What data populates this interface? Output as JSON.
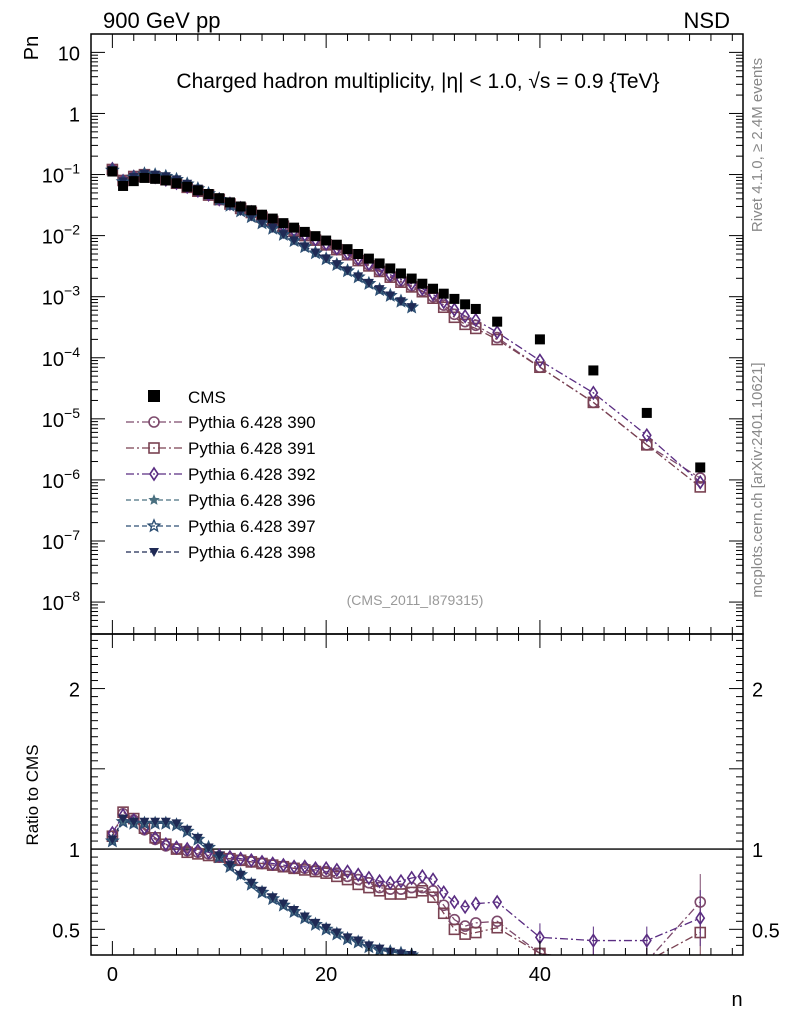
{
  "header": {
    "left": "900 GeV pp",
    "right": "NSD",
    "side_top": "Rivet 4.1.0, ≥ 2.4M events",
    "side_bottom": "mcplots.cern.ch [arXiv:2401.10621]"
  },
  "chart_data": {
    "type": "scatter",
    "title": "Charged hadron multiplicity, |η| < 1.0, √s = 0.9 {TeV}",
    "analysis_label": "(CMS_2011_I879315)",
    "xlabel": "n",
    "ylabel_top": "Pn",
    "ylabel_bottom": "Ratio to CMS",
    "xlim": [
      -2,
      59
    ],
    "ylim_top": [
      3e-09,
      20
    ],
    "ylim_bottom": [
      0.34,
      2.34
    ],
    "x_ticks": [
      "0",
      "20",
      "40"
    ],
    "y_ticks_top": [
      "10^-8",
      "10^-7",
      "10^-6",
      "10^-5",
      "10^-4",
      "10^-3",
      "10^-2",
      "10^-1",
      "1",
      "10"
    ],
    "y_ticks_bottom": [
      "0.5",
      "1",
      "2"
    ],
    "data": {
      "name": "CMS",
      "x": [
        0,
        1,
        2,
        3,
        4,
        5,
        6,
        7,
        8,
        9,
        10,
        11,
        12,
        13,
        14,
        15,
        16,
        17,
        18,
        19,
        20,
        21,
        22,
        23,
        24,
        25,
        26,
        27,
        28,
        29,
        30,
        31,
        32,
        33,
        34,
        36,
        40,
        45,
        50,
        55
      ],
      "y": [
        0.112,
        0.065,
        0.078,
        0.088,
        0.085,
        0.08,
        0.072,
        0.063,
        0.055,
        0.048,
        0.041,
        0.035,
        0.03,
        0.026,
        0.022,
        0.019,
        0.016,
        0.0135,
        0.0115,
        0.0098,
        0.0083,
        0.0071,
        0.006,
        0.005,
        0.0042,
        0.0035,
        0.0029,
        0.0024,
        0.00198,
        0.00163,
        0.00135,
        0.00112,
        0.00092,
        0.00075,
        0.00063,
        0.00039,
        0.0002,
        6.2e-05,
        1.25e-05,
        1.6e-06
      ]
    },
    "series": [
      {
        "name": "Pythia 6.428 390",
        "marker": "circle",
        "color": "#7d4a6c",
        "dash": "8,3,2,3",
        "ratio": [
          1.08,
          1.22,
          1.18,
          1.12,
          1.06,
          1.02,
          1.0,
          0.99,
          0.98,
          0.97,
          0.95,
          0.94,
          0.93,
          0.92,
          0.91,
          0.9,
          0.89,
          0.88,
          0.88,
          0.87,
          0.86,
          0.85,
          0.83,
          0.81,
          0.79,
          0.76,
          0.75,
          0.75,
          0.76,
          0.76,
          0.74,
          0.65,
          0.56,
          0.52,
          0.54,
          0.55,
          0.35,
          0.3,
          0.3,
          0.67
        ]
      },
      {
        "name": "Pythia 6.428 391",
        "marker": "square",
        "color": "#7a4252",
        "dash": "8,3,2,3",
        "ratio": [
          1.08,
          1.23,
          1.19,
          1.13,
          1.07,
          1.03,
          1.0,
          0.98,
          0.97,
          0.96,
          0.95,
          0.94,
          0.93,
          0.92,
          0.91,
          0.9,
          0.89,
          0.88,
          0.87,
          0.86,
          0.85,
          0.83,
          0.81,
          0.78,
          0.76,
          0.74,
          0.72,
          0.72,
          0.73,
          0.74,
          0.7,
          0.6,
          0.5,
          0.47,
          0.48,
          0.51,
          0.35,
          0.3,
          0.3,
          0.48
        ]
      },
      {
        "name": "Pythia 6.428 392",
        "marker": "diamond",
        "color": "#5a2d82",
        "dash": "8,3,2,3",
        "ratio": [
          1.1,
          1.21,
          1.18,
          1.13,
          1.07,
          1.03,
          1.01,
          1.0,
          0.99,
          0.98,
          0.96,
          0.95,
          0.94,
          0.93,
          0.92,
          0.91,
          0.9,
          0.89,
          0.89,
          0.88,
          0.88,
          0.87,
          0.86,
          0.84,
          0.82,
          0.8,
          0.79,
          0.8,
          0.82,
          0.83,
          0.81,
          0.73,
          0.67,
          0.64,
          0.66,
          0.67,
          0.45,
          0.43,
          0.43,
          0.57
        ]
      },
      {
        "name": "Pythia 6.428 396",
        "marker": "star",
        "color": "#4a7080",
        "dash": "5,3",
        "ratio": [
          1.05,
          1.17,
          1.16,
          1.16,
          1.16,
          1.16,
          1.15,
          1.11,
          1.06,
          1.01,
          0.95,
          0.89,
          0.84,
          0.78,
          0.73,
          0.69,
          0.65,
          0.61,
          0.57,
          0.53,
          0.5,
          0.47,
          0.44,
          0.42,
          0.39,
          0.37,
          0.36,
          0.35,
          0.34
        ]
      },
      {
        "name": "Pythia 6.428 397",
        "marker": "star-open",
        "color": "#2d4f73",
        "dash": "5,3",
        "ratio": [
          1.05,
          1.17,
          1.16,
          1.16,
          1.16,
          1.16,
          1.15,
          1.11,
          1.06,
          1.01,
          0.95,
          0.89,
          0.84,
          0.78,
          0.73,
          0.69,
          0.65,
          0.61,
          0.57,
          0.53,
          0.5,
          0.47,
          0.44,
          0.42,
          0.39,
          0.37,
          0.36,
          0.35,
          0.34
        ]
      },
      {
        "name": "Pythia 6.428 398",
        "marker": "triangle-down",
        "color": "#1f2a55",
        "dash": "5,3",
        "ratio": [
          1.06,
          1.19,
          1.17,
          1.17,
          1.17,
          1.17,
          1.16,
          1.12,
          1.07,
          1.01,
          0.96,
          0.9,
          0.84,
          0.79,
          0.74,
          0.7,
          0.66,
          0.62,
          0.58,
          0.54,
          0.51,
          0.48,
          0.45,
          0.43,
          0.4,
          0.38,
          0.36,
          0.35,
          0.34
        ]
      }
    ]
  }
}
